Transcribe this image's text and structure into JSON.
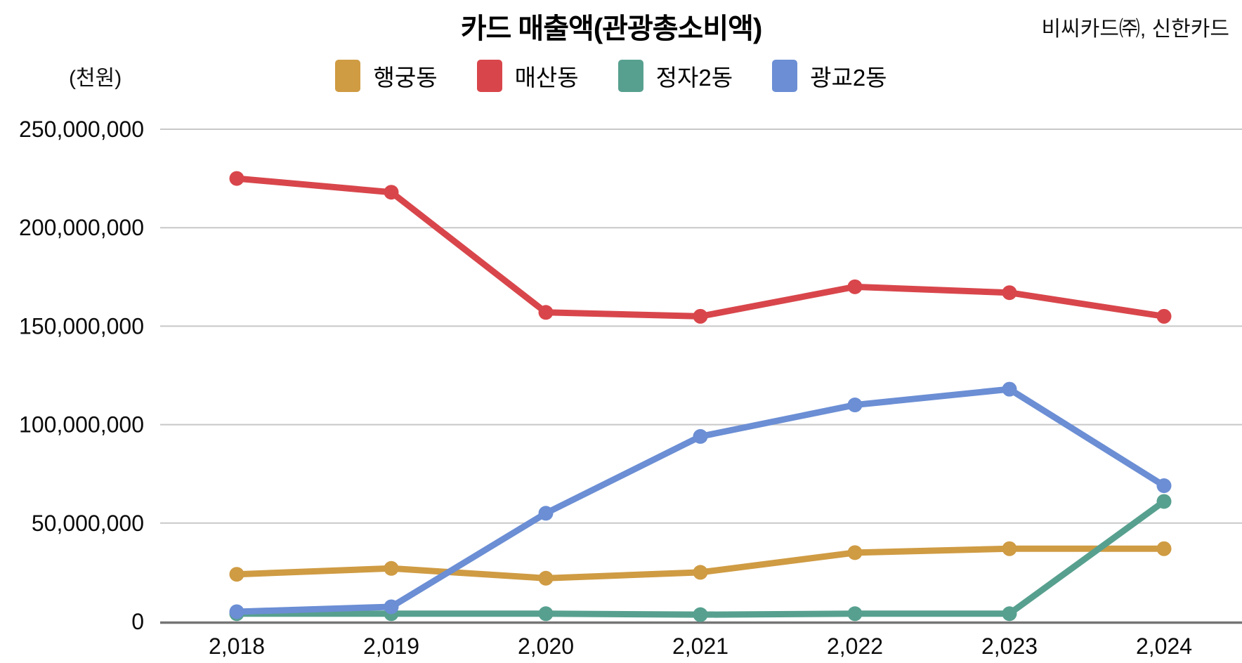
{
  "header": {
    "title": "카드 매출액(관광총소비액)",
    "source": "비씨카드㈜, 신한카드",
    "unit_label": "(천원)"
  },
  "chart_data": {
    "type": "line",
    "title": "카드 매출액(관광총소비액)",
    "xlabel": "",
    "ylabel": "(천원)",
    "categories": [
      "2,018",
      "2,019",
      "2,020",
      "2,021",
      "2,022",
      "2,023",
      "2,024"
    ],
    "y_tick_labels": [
      "0",
      "50,000,000",
      "100,000,000",
      "150,000,000",
      "200,000,000",
      "250,000,000"
    ],
    "ylim": [
      0,
      250000000
    ],
    "grid": true,
    "legend_position": "top",
    "series": [
      {
        "name": "행궁동",
        "color": "#CF9B43",
        "values": [
          24000000,
          27000000,
          22000000,
          25000000,
          35000000,
          37000000,
          37000000
        ]
      },
      {
        "name": "매산동",
        "color": "#D8464B",
        "values": [
          225000000,
          218000000,
          157000000,
          155000000,
          170000000,
          167000000,
          155000000
        ]
      },
      {
        "name": "정자2동",
        "color": "#57A08F",
        "values": [
          4000000,
          4000000,
          4000000,
          3500000,
          4000000,
          4000000,
          61000000
        ]
      },
      {
        "name": "광교2동",
        "color": "#6B8ED4",
        "values": [
          5000000,
          7500000,
          55000000,
          94000000,
          110000000,
          118000000,
          69000000
        ]
      }
    ],
    "style": {
      "gridline_color": "#C8C8C8",
      "axis_line_color": "#757575",
      "line_width": 9,
      "marker_radius": 10.5
    }
  }
}
